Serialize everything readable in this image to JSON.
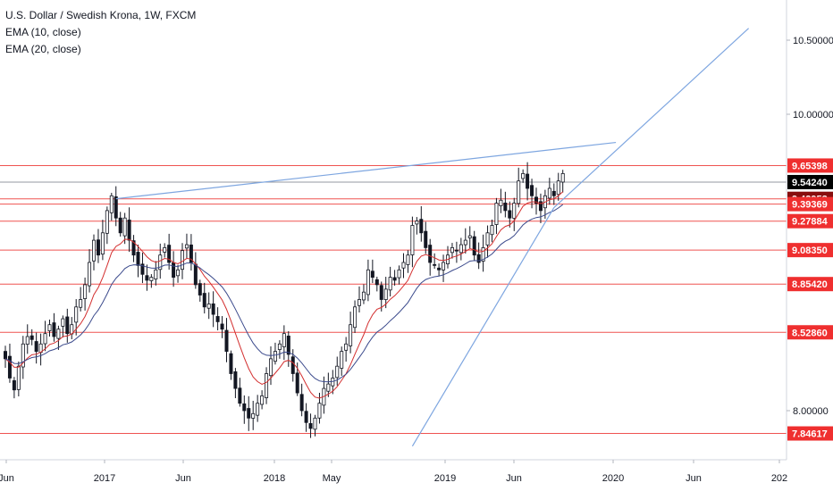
{
  "legend": {
    "title": "U.S. Dollar / Swedish Krona, 1W, FXCM",
    "ema10": "EMA (10, close)",
    "ema20": "EMA (20, close)"
  },
  "colors": {
    "bull": "#ffffff",
    "bear": "#131722",
    "wick": "#131722",
    "ema10": "#d32f2f",
    "ema20": "#3b4a8c",
    "hline": "#ef5350",
    "trend": "#7ea6e0",
    "price_line": "#9598a1",
    "label_red": "#ef2f2f",
    "label_current": "#000000",
    "label_dark": "#880e0e"
  },
  "chart_data": {
    "type": "candlestick",
    "symbol": "USDSEK",
    "timeframe": "1W",
    "x_axis_labels": [
      "Jun",
      "2017",
      "Jun",
      "2018",
      "May",
      "2019",
      "Jun",
      "2020",
      "Jun",
      "202"
    ],
    "y_axis_ticks": [
      "10.50000",
      "10.00000",
      "8.00000"
    ],
    "y_range": [
      7.7,
      10.9
    ],
    "horizontal_levels": [
      {
        "value": 9.65398,
        "label": "9.65398",
        "style": "red"
      },
      {
        "value": 9.5424,
        "label": "9.54240",
        "style": "current"
      },
      {
        "value": 9.42953,
        "label": "9.42953",
        "style": "dark"
      },
      {
        "value": 9.39369,
        "label": "9.39369",
        "style": "red"
      },
      {
        "value": 9.27884,
        "label": "9.27884",
        "style": "red"
      },
      {
        "value": 9.0835,
        "label": "9.08350",
        "style": "red"
      },
      {
        "value": 8.8542,
        "label": "8.85420",
        "style": "red"
      },
      {
        "value": 8.5286,
        "label": "8.52860",
        "style": "red"
      },
      {
        "value": 7.84617,
        "label": "7.84617",
        "style": "red"
      }
    ],
    "closes": [
      8.35,
      8.22,
      8.14,
      8.3,
      8.45,
      8.5,
      8.48,
      8.4,
      8.45,
      8.52,
      8.58,
      8.5,
      8.55,
      8.62,
      8.52,
      8.58,
      8.7,
      8.75,
      8.85,
      9.0,
      9.15,
      9.05,
      9.2,
      9.35,
      9.45,
      9.3,
      9.2,
      9.3,
      9.15,
      9.05,
      8.98,
      8.92,
      8.88,
      8.9,
      8.95,
      9.05,
      9.1,
      9.0,
      8.9,
      8.95,
      9.08,
      9.12,
      9.0,
      8.85,
      8.78,
      8.7,
      8.72,
      8.65,
      8.6,
      8.55,
      8.4,
      8.25,
      8.15,
      8.05,
      8.0,
      7.95,
      7.98,
      8.05,
      8.1,
      8.25,
      8.35,
      8.4,
      8.45,
      8.52,
      8.38,
      8.25,
      8.12,
      8.0,
      7.92,
      7.88,
      7.95,
      8.05,
      8.15,
      8.18,
      8.22,
      8.3,
      8.4,
      8.45,
      8.58,
      8.7,
      8.75,
      8.8,
      8.95,
      8.9,
      8.85,
      8.75,
      8.82,
      8.9,
      8.88,
      8.95,
      9.0,
      9.05,
      9.25,
      9.28,
      9.2,
      9.1,
      9.0,
      8.98,
      8.95,
      9.0,
      9.05,
      9.1,
      9.08,
      9.12,
      9.15,
      9.18,
      9.05,
      9.0,
      9.1,
      9.2,
      9.25,
      9.4,
      9.42,
      9.35,
      9.3,
      9.4,
      9.55,
      9.6,
      9.5,
      9.45,
      9.4,
      9.35,
      9.45,
      9.5,
      9.45,
      9.55,
      9.6
    ],
    "ema_periods": [
      10,
      20
    ],
    "trendlines": [
      {
        "from": {
          "bar": 25,
          "value": 9.43
        },
        "to": {
          "bar": 138,
          "value": 9.81
        }
      },
      {
        "from": {
          "bar": 92,
          "value": 7.76
        },
        "to": {
          "bar": 124,
          "value": 9.37
        }
      },
      {
        "from": {
          "bar": 124,
          "value": 9.37
        },
        "to": {
          "bar": 168,
          "value": 10.58
        }
      }
    ]
  }
}
